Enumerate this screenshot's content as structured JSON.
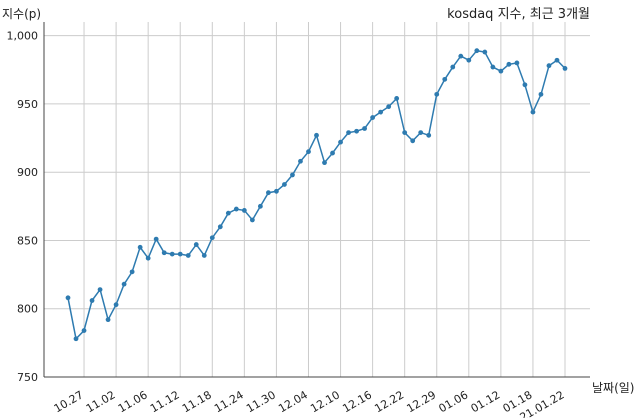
{
  "chart_data": {
    "type": "line",
    "title": "kosdaq 지수, 최근 3개월",
    "ylabel": "지수(p)",
    "xlabel": "날짜(일)",
    "ylim": [
      750,
      1010
    ],
    "yticks": [
      750,
      800,
      850,
      900,
      950,
      1000
    ],
    "ytick_labels": [
      "750",
      "800",
      "850",
      "900",
      "950",
      "1,000"
    ],
    "grid": true,
    "line_color": "#2e7bb0",
    "grid_color": "#cccccc",
    "xtick_labels": [
      "10.27",
      "11.02",
      "11.06",
      "11.12",
      "11.18",
      "11.24",
      "11.30",
      "12.04",
      "12.10",
      "12.16",
      "12.22",
      "12.29",
      "01.06",
      "01.12",
      "01.18",
      "21.01.22"
    ],
    "xtick_indices": [
      2,
      6,
      10,
      14,
      18,
      22,
      26,
      30,
      34,
      38,
      42,
      46,
      50,
      54,
      58,
      62
    ],
    "series": [
      {
        "values": [
          808,
          778,
          784,
          806,
          814,
          792,
          803,
          818,
          827,
          845,
          837,
          851,
          841,
          840,
          840,
          839,
          847,
          839,
          852,
          860,
          870,
          873,
          872,
          865,
          875,
          885,
          886,
          891,
          898,
          908,
          915,
          927,
          907,
          914,
          922,
          929,
          930,
          932,
          940,
          944,
          948,
          954,
          929,
          923,
          929,
          927,
          957,
          968,
          977,
          985,
          982,
          989,
          988,
          977,
          974,
          979,
          980,
          964,
          944,
          957,
          978,
          982,
          976
        ]
      }
    ]
  }
}
